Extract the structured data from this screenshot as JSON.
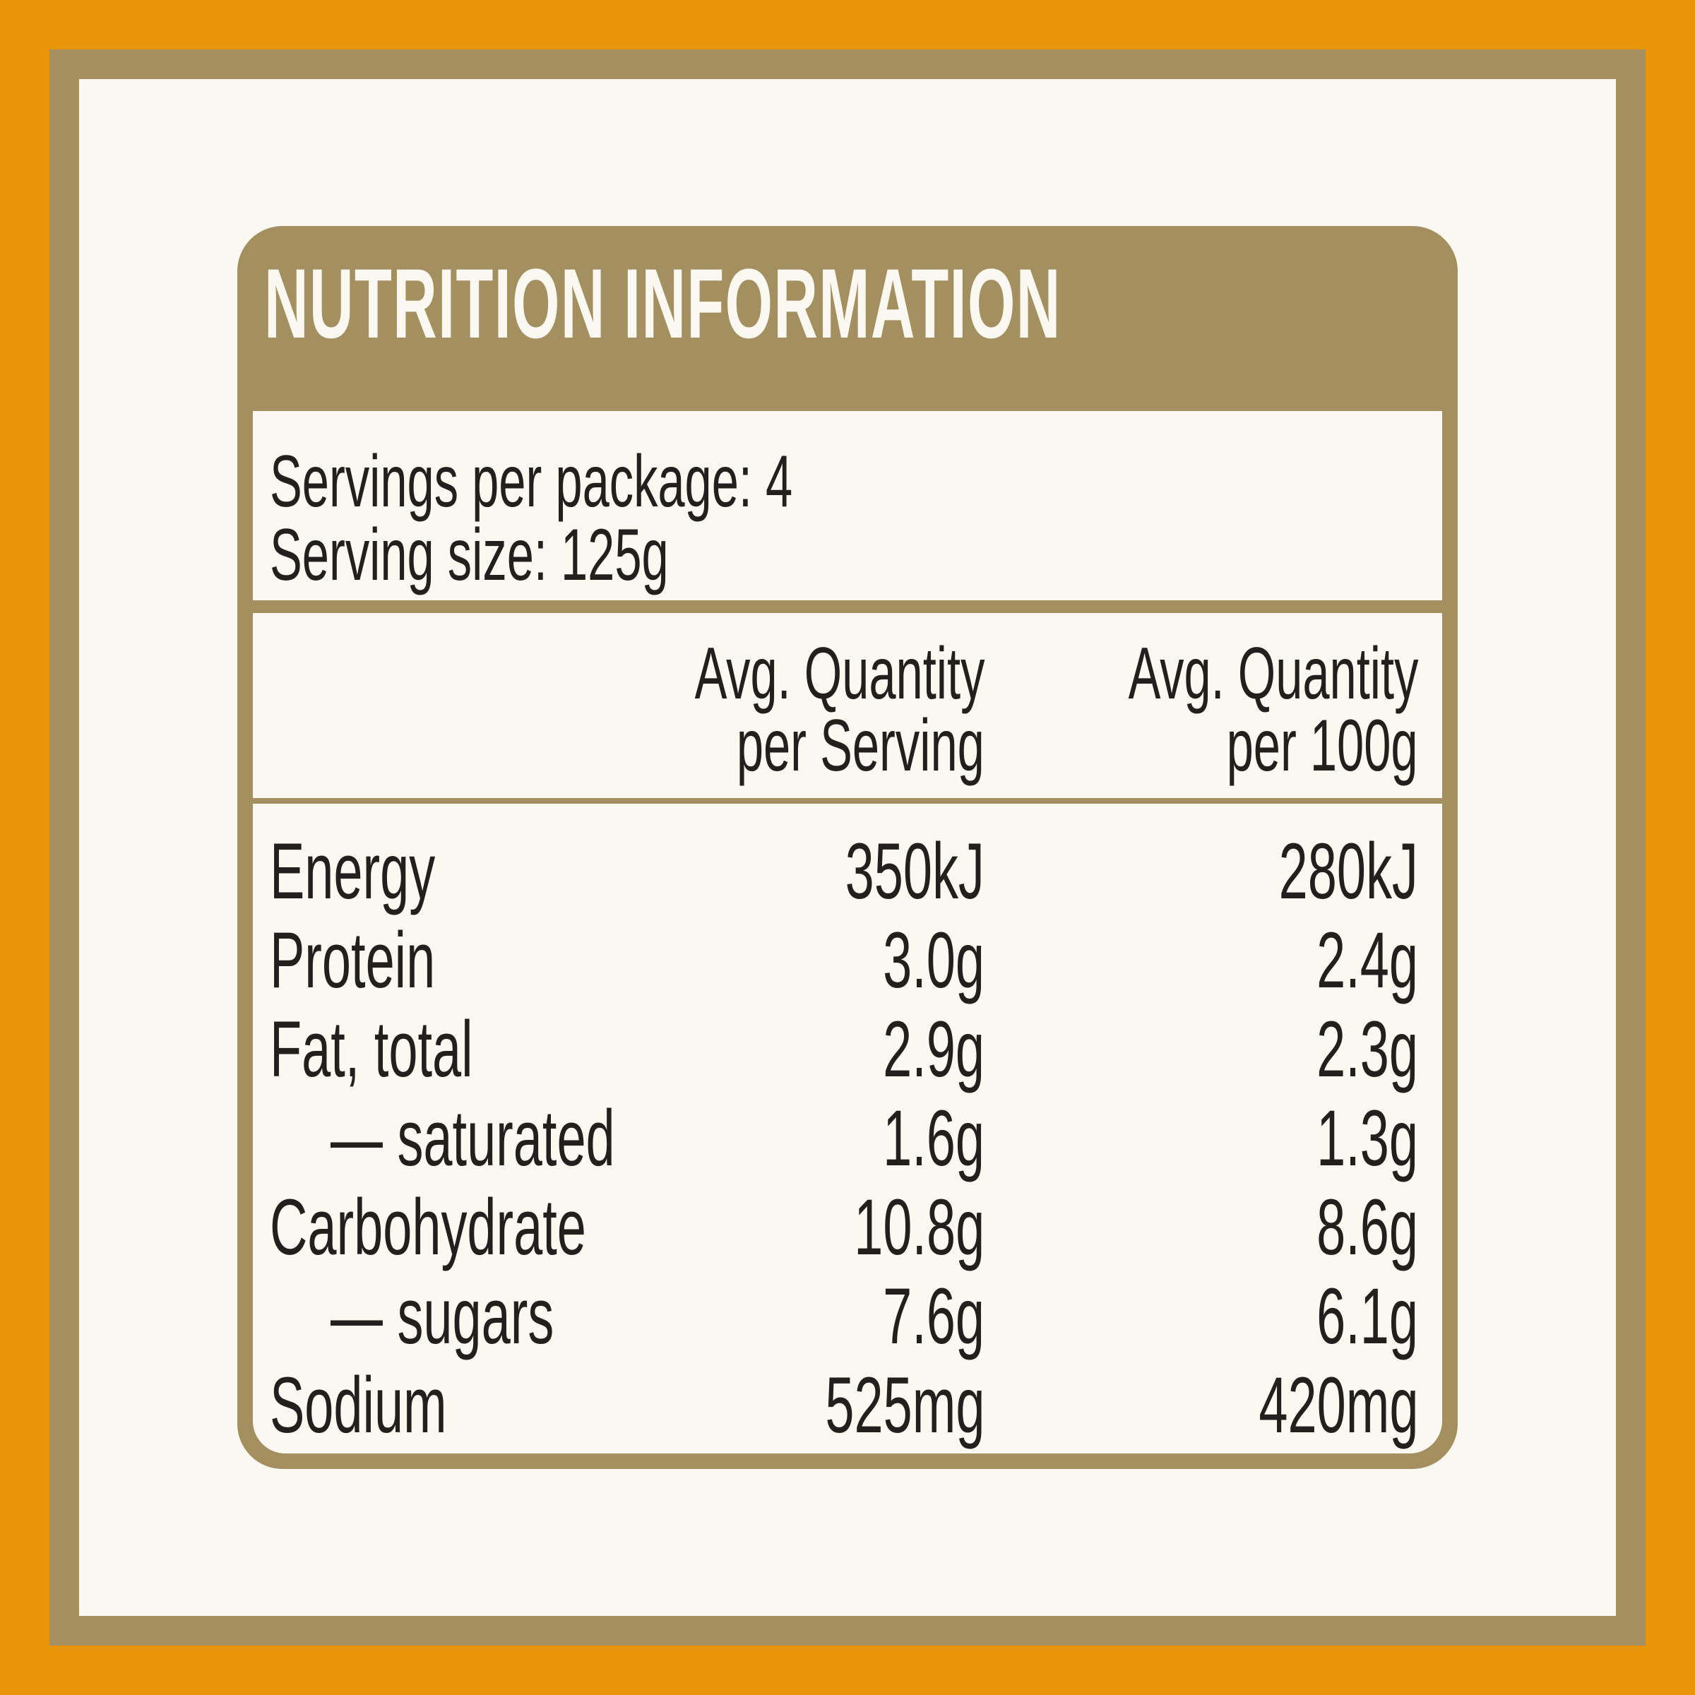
{
  "title": "NUTRITION INFORMATION",
  "servings": {
    "per_package": "Servings per package: 4",
    "serving_size": "Serving size: 125g"
  },
  "columns": [
    {
      "line1": "Avg. Quantity",
      "line2": "per Serving"
    },
    {
      "line1": "Avg. Quantity",
      "line2": "per 100g"
    }
  ],
  "rows": [
    {
      "label": "Energy",
      "per_serving": "350kJ",
      "per_100g": "280kJ"
    },
    {
      "label": "Protein",
      "per_serving": "3.0g",
      "per_100g": "2.4g"
    },
    {
      "label": "Fat, total",
      "per_serving": "2.9g",
      "per_100g": "2.3g"
    },
    {
      "label": "— saturated",
      "per_serving": "1.6g",
      "per_100g": "1.3g"
    },
    {
      "label": "Carbohydrate",
      "per_serving": "10.8g",
      "per_100g": "8.6g"
    },
    {
      "label": "— sugars",
      "per_serving": "7.6g",
      "per_100g": "6.1g"
    },
    {
      "label": "Sodium",
      "per_serving": "525mg",
      "per_100g": "420mg"
    }
  ],
  "colors": {
    "outer_orange": "#e8950a",
    "frame_gold": "#a38f5f",
    "background_cream": "#fbf8f1",
    "text_dark": "#221f1e"
  }
}
